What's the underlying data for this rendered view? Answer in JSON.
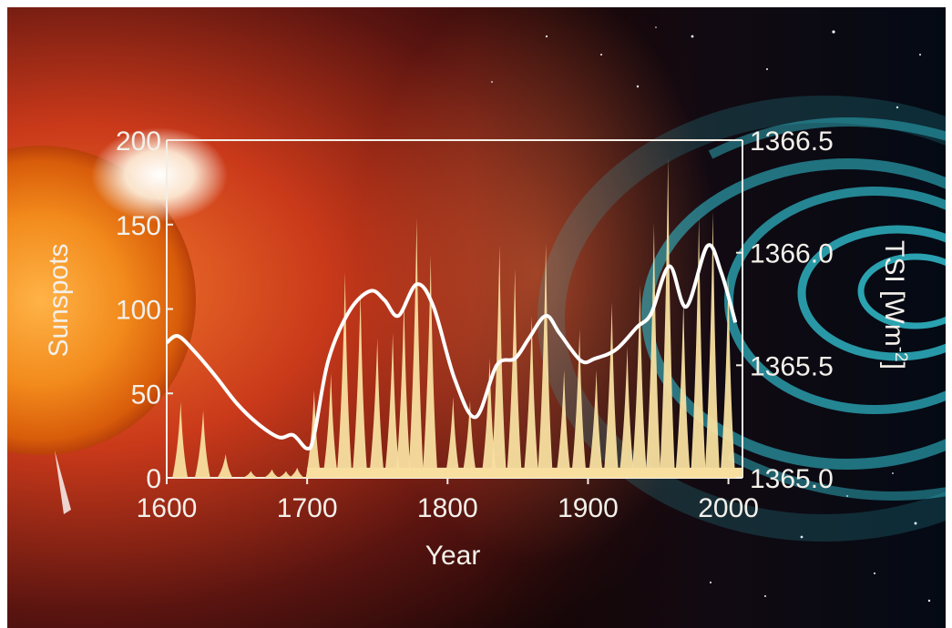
{
  "chart_data": {
    "type": "line",
    "xlabel": "Year",
    "ylabel": "Sunspots",
    "y2label": "TSI [Wm",
    "y2label_sup": "-2",
    "y2label_close": "]",
    "xlim": [
      1600,
      2010
    ],
    "ylim": [
      0,
      200
    ],
    "y2lim": [
      1365.0,
      1366.5
    ],
    "x_ticks": [
      "1600",
      "1700",
      "1800",
      "1900",
      "2000"
    ],
    "y_ticks": [
      "0",
      "50",
      "100",
      "150",
      "200"
    ],
    "y2_ticks": [
      "1365.0",
      "1365.5",
      "1366.0",
      "1366.5"
    ],
    "grid": false,
    "series": [
      {
        "kind": "bar",
        "color": "#f8dfa0",
        "peaks": [
          [
            1610,
            45
          ],
          [
            1626,
            40
          ],
          [
            1642,
            14
          ],
          [
            1660,
            4
          ],
          [
            1675,
            5
          ],
          [
            1685,
            4
          ],
          [
            1693,
            6
          ],
          [
            1705,
            52
          ],
          [
            1717,
            62
          ],
          [
            1727,
            122
          ],
          [
            1738,
            111
          ],
          [
            1750,
            83
          ],
          [
            1761,
            86
          ],
          [
            1769,
            106
          ],
          [
            1778,
            154
          ],
          [
            1788,
            132
          ],
          [
            1804,
            48
          ],
          [
            1816,
            46
          ],
          [
            1830,
            71
          ],
          [
            1837,
            138
          ],
          [
            1848,
            124
          ],
          [
            1860,
            96
          ],
          [
            1870,
            139
          ],
          [
            1883,
            64
          ],
          [
            1894,
            88
          ],
          [
            1906,
            64
          ],
          [
            1917,
            104
          ],
          [
            1928,
            78
          ],
          [
            1937,
            114
          ],
          [
            1947,
            151
          ],
          [
            1957,
            190
          ],
          [
            1968,
            106
          ],
          [
            1979,
            155
          ],
          [
            1989,
            158
          ],
          [
            2000,
            120
          ]
        ]
      },
      {
        "kind": "line",
        "color": "#ffffff",
        "axis": "right",
        "x": [
          1600,
          1608,
          1620,
          1635,
          1650,
          1665,
          1680,
          1690,
          1700,
          1705,
          1715,
          1730,
          1745,
          1755,
          1765,
          1778,
          1790,
          1805,
          1820,
          1835,
          1848,
          1858,
          1870,
          1880,
          1895,
          1905,
          1920,
          1935,
          1945,
          1958,
          1970,
          1985,
          1995,
          2005
        ],
        "y": [
          1365.6,
          1365.63,
          1365.56,
          1365.45,
          1365.33,
          1365.24,
          1365.18,
          1365.19,
          1365.13,
          1365.19,
          1365.52,
          1365.74,
          1365.83,
          1365.79,
          1365.72,
          1365.86,
          1365.76,
          1365.44,
          1365.27,
          1365.5,
          1365.53,
          1365.62,
          1365.72,
          1365.64,
          1365.52,
          1365.53,
          1365.57,
          1365.67,
          1365.73,
          1365.94,
          1365.76,
          1366.03,
          1365.91,
          1365.69
        ]
      }
    ]
  }
}
